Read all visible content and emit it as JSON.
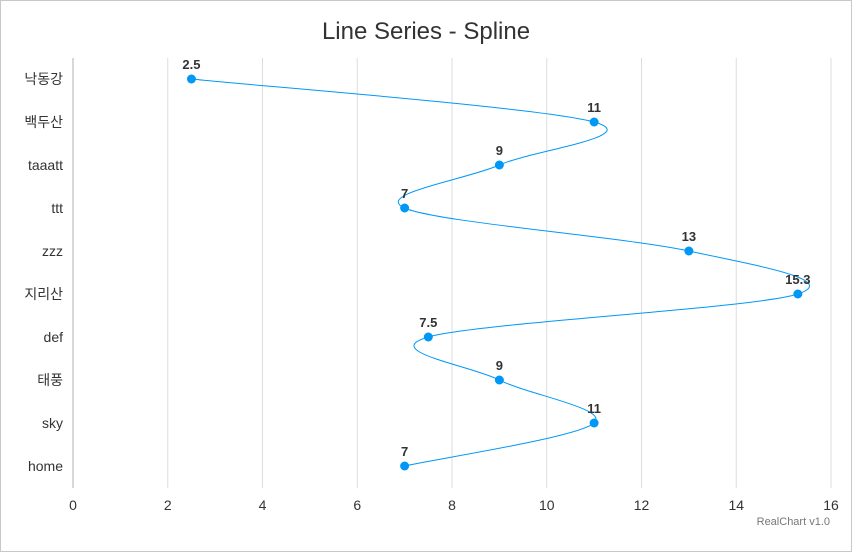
{
  "chart_data": {
    "type": "line",
    "subtype": "spline",
    "orientation": "horizontal",
    "title": "Line Series - Spline",
    "categories": [
      "낙동강",
      "백두산",
      "taaatt",
      "ttt",
      "zzz",
      "지리산",
      "def",
      "태풍",
      "sky",
      "home"
    ],
    "values": [
      2.5,
      11,
      9,
      7,
      13,
      15.3,
      7.5,
      9,
      11,
      7
    ],
    "value_labels": [
      "2.5",
      "11",
      "9",
      "7",
      "13",
      "15.3",
      "7.5",
      "9",
      "11",
      "7"
    ],
    "value_axis": {
      "min": 0,
      "max": 16,
      "ticks": [
        "0",
        "2",
        "4",
        "6",
        "8",
        "10",
        "12",
        "14",
        "16"
      ]
    },
    "grid": true,
    "series_color": "#0098f7",
    "credit": "RealChart v1.0"
  }
}
